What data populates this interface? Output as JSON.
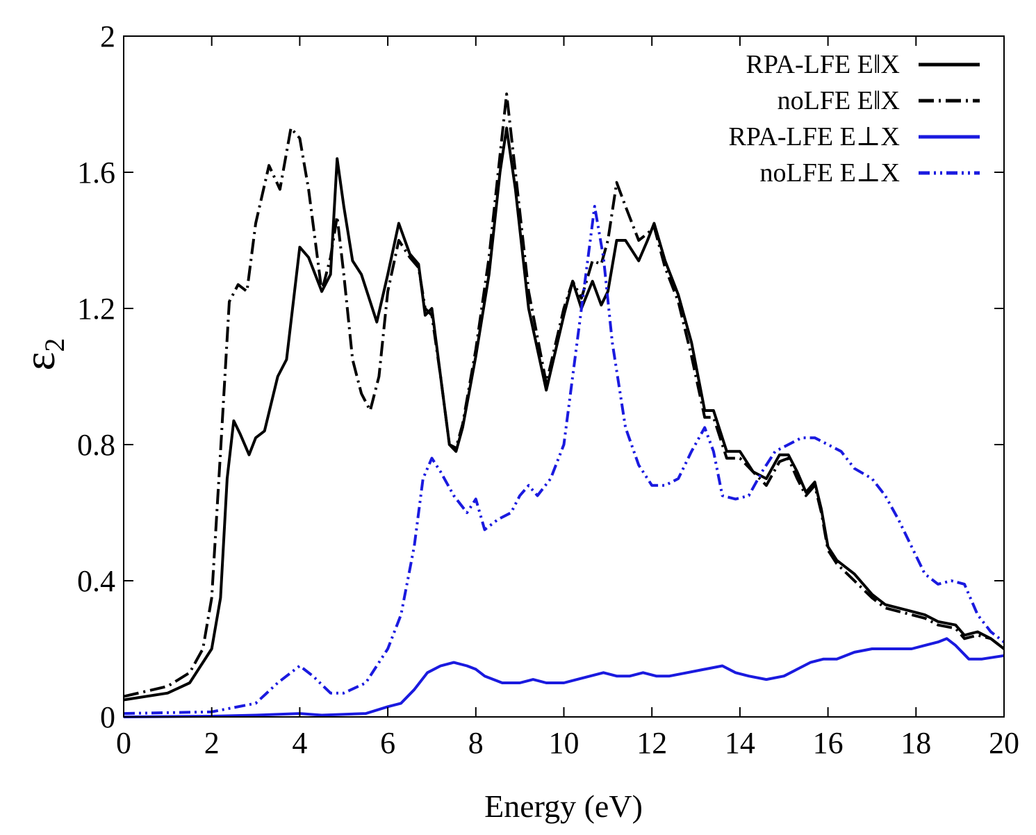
{
  "chart_data": {
    "type": "line",
    "title": "",
    "xlabel": "Energy (eV)",
    "ylabel": "ε",
    "ylabel_subscript": "2",
    "xlim": [
      0,
      20
    ],
    "ylim": [
      0,
      2
    ],
    "xticks": [
      0,
      2,
      4,
      6,
      8,
      10,
      12,
      14,
      16,
      18,
      20
    ],
    "xtick_labels": [
      "0",
      "2",
      "4",
      "6",
      "8",
      "10",
      "12",
      "14",
      "16",
      "18",
      "20"
    ],
    "yticks": [
      0,
      0.4,
      0.8,
      1.2,
      1.6,
      2
    ],
    "ytick_labels": [
      "0",
      "0.4",
      "0.8",
      "1.2",
      "1.6",
      "2"
    ],
    "grid": false,
    "legend_position": "top-right",
    "series": [
      {
        "name": "RPA-LFE E‖X",
        "color": "#000000",
        "style": "solid",
        "x": [
          0,
          1,
          1.5,
          2,
          2.2,
          2.35,
          2.5,
          2.65,
          2.85,
          3.0,
          3.2,
          3.5,
          3.7,
          4.0,
          4.2,
          4.5,
          4.7,
          4.85,
          5.0,
          5.2,
          5.4,
          5.6,
          5.75,
          6.0,
          6.25,
          6.5,
          6.7,
          6.85,
          7.0,
          7.2,
          7.4,
          7.55,
          7.7,
          8.0,
          8.3,
          8.55,
          8.7,
          8.9,
          9.2,
          9.6,
          10.0,
          10.2,
          10.4,
          10.65,
          10.85,
          11.0,
          11.2,
          11.4,
          11.7,
          11.9,
          12.05,
          12.3,
          12.6,
          12.9,
          13.2,
          13.4,
          13.7,
          14.0,
          14.3,
          14.6,
          14.9,
          15.1,
          15.3,
          15.5,
          15.7,
          15.85,
          16.0,
          16.2,
          16.6,
          17.0,
          17.3,
          17.6,
          17.9,
          18.2,
          18.5,
          18.9,
          19.1,
          19.4,
          19.7,
          20.0
        ],
        "y": [
          0.05,
          0.07,
          0.1,
          0.2,
          0.35,
          0.7,
          0.87,
          0.83,
          0.77,
          0.82,
          0.84,
          1.0,
          1.05,
          1.38,
          1.35,
          1.25,
          1.3,
          1.64,
          1.5,
          1.34,
          1.3,
          1.22,
          1.16,
          1.3,
          1.45,
          1.36,
          1.33,
          1.18,
          1.2,
          1.0,
          0.8,
          0.78,
          0.85,
          1.06,
          1.3,
          1.6,
          1.73,
          1.55,
          1.2,
          0.96,
          1.18,
          1.28,
          1.2,
          1.28,
          1.21,
          1.25,
          1.4,
          1.4,
          1.34,
          1.4,
          1.45,
          1.34,
          1.24,
          1.1,
          0.9,
          0.9,
          0.78,
          0.78,
          0.72,
          0.7,
          0.77,
          0.77,
          0.72,
          0.66,
          0.69,
          0.61,
          0.5,
          0.46,
          0.42,
          0.36,
          0.33,
          0.32,
          0.31,
          0.3,
          0.28,
          0.27,
          0.24,
          0.25,
          0.23,
          0.2
        ]
      },
      {
        "name": "noLFE E‖X",
        "color": "#000000",
        "style": "dashdot",
        "x": [
          0,
          1,
          1.5,
          1.8,
          2.0,
          2.2,
          2.4,
          2.6,
          2.8,
          3.0,
          3.3,
          3.55,
          3.8,
          4.0,
          4.2,
          4.5,
          4.7,
          4.85,
          5.0,
          5.2,
          5.4,
          5.6,
          5.8,
          6.0,
          6.25,
          6.5,
          6.7,
          6.85,
          7.0,
          7.2,
          7.4,
          7.55,
          7.7,
          8.0,
          8.3,
          8.55,
          8.7,
          8.9,
          9.2,
          9.6,
          10.0,
          10.2,
          10.4,
          10.65,
          10.85,
          11.0,
          11.2,
          11.4,
          11.7,
          11.9,
          12.05,
          12.3,
          12.6,
          12.9,
          13.2,
          13.4,
          13.7,
          14.0,
          14.3,
          14.6,
          14.9,
          15.1,
          15.3,
          15.5,
          15.7,
          15.85,
          16.0,
          16.2,
          16.6,
          17.0,
          17.3,
          17.6,
          17.9,
          18.2,
          18.5,
          18.9,
          19.1,
          19.4,
          19.7,
          20.0
        ],
        "y": [
          0.06,
          0.09,
          0.13,
          0.2,
          0.35,
          0.78,
          1.22,
          1.27,
          1.25,
          1.45,
          1.62,
          1.55,
          1.73,
          1.7,
          1.55,
          1.25,
          1.35,
          1.47,
          1.3,
          1.05,
          0.95,
          0.9,
          1.0,
          1.25,
          1.4,
          1.35,
          1.32,
          1.2,
          1.18,
          1.0,
          0.8,
          0.79,
          0.86,
          1.08,
          1.35,
          1.65,
          1.83,
          1.6,
          1.25,
          0.98,
          1.2,
          1.28,
          1.23,
          1.34,
          1.33,
          1.4,
          1.57,
          1.5,
          1.4,
          1.42,
          1.44,
          1.32,
          1.22,
          1.06,
          0.88,
          0.88,
          0.76,
          0.76,
          0.72,
          0.68,
          0.75,
          0.76,
          0.7,
          0.65,
          0.68,
          0.6,
          0.49,
          0.45,
          0.4,
          0.35,
          0.32,
          0.31,
          0.3,
          0.29,
          0.27,
          0.26,
          0.23,
          0.24,
          0.23,
          0.2
        ]
      },
      {
        "name": "RPA-LFE E⊥X",
        "color": "#1a1adf",
        "style": "solid",
        "x": [
          0,
          2,
          3,
          4,
          4.5,
          5.5,
          6.0,
          6.3,
          6.6,
          6.9,
          7.2,
          7.5,
          7.8,
          8.0,
          8.2,
          8.6,
          9.0,
          9.3,
          9.6,
          10.0,
          10.3,
          10.6,
          10.9,
          11.2,
          11.5,
          11.8,
          12.1,
          12.4,
          12.8,
          13.2,
          13.6,
          13.9,
          14.2,
          14.6,
          15.0,
          15.3,
          15.6,
          15.9,
          16.2,
          16.6,
          17.0,
          17.3,
          17.6,
          17.9,
          18.2,
          18.5,
          18.7,
          18.9,
          19.2,
          19.5,
          20.0
        ],
        "y": [
          0,
          0.002,
          0.005,
          0.01,
          0.005,
          0.01,
          0.03,
          0.04,
          0.08,
          0.13,
          0.15,
          0.16,
          0.15,
          0.14,
          0.12,
          0.1,
          0.1,
          0.11,
          0.1,
          0.1,
          0.11,
          0.12,
          0.13,
          0.12,
          0.12,
          0.13,
          0.12,
          0.12,
          0.13,
          0.14,
          0.15,
          0.13,
          0.12,
          0.11,
          0.12,
          0.14,
          0.16,
          0.17,
          0.17,
          0.19,
          0.2,
          0.2,
          0.2,
          0.2,
          0.21,
          0.22,
          0.23,
          0.21,
          0.17,
          0.17,
          0.18
        ]
      },
      {
        "name": "noLFE E⊥X",
        "color": "#1a1adf",
        "style": "dashdotdot",
        "x": [
          0,
          2,
          3,
          3.5,
          4.0,
          4.3,
          4.7,
          5.0,
          5.5,
          6.0,
          6.3,
          6.6,
          6.8,
          7.0,
          7.2,
          7.5,
          7.8,
          8.0,
          8.2,
          8.5,
          8.8,
          9.0,
          9.2,
          9.4,
          9.7,
          10.0,
          10.3,
          10.5,
          10.7,
          10.9,
          11.1,
          11.4,
          11.7,
          12.0,
          12.3,
          12.6,
          12.9,
          13.2,
          13.4,
          13.6,
          13.9,
          14.2,
          14.5,
          14.8,
          15.1,
          15.4,
          15.7,
          16.0,
          16.3,
          16.6,
          17.0,
          17.3,
          17.6,
          17.9,
          18.2,
          18.5,
          18.8,
          19.1,
          19.4,
          19.7,
          20.0
        ],
        "y": [
          0.01,
          0.015,
          0.04,
          0.1,
          0.15,
          0.12,
          0.07,
          0.07,
          0.1,
          0.2,
          0.3,
          0.5,
          0.7,
          0.76,
          0.72,
          0.65,
          0.6,
          0.64,
          0.55,
          0.58,
          0.6,
          0.65,
          0.68,
          0.65,
          0.7,
          0.8,
          1.1,
          1.3,
          1.5,
          1.35,
          1.1,
          0.85,
          0.74,
          0.68,
          0.68,
          0.7,
          0.78,
          0.85,
          0.78,
          0.65,
          0.64,
          0.65,
          0.72,
          0.78,
          0.8,
          0.82,
          0.82,
          0.8,
          0.78,
          0.73,
          0.7,
          0.65,
          0.58,
          0.5,
          0.42,
          0.39,
          0.4,
          0.39,
          0.3,
          0.25,
          0.22
        ]
      }
    ]
  }
}
